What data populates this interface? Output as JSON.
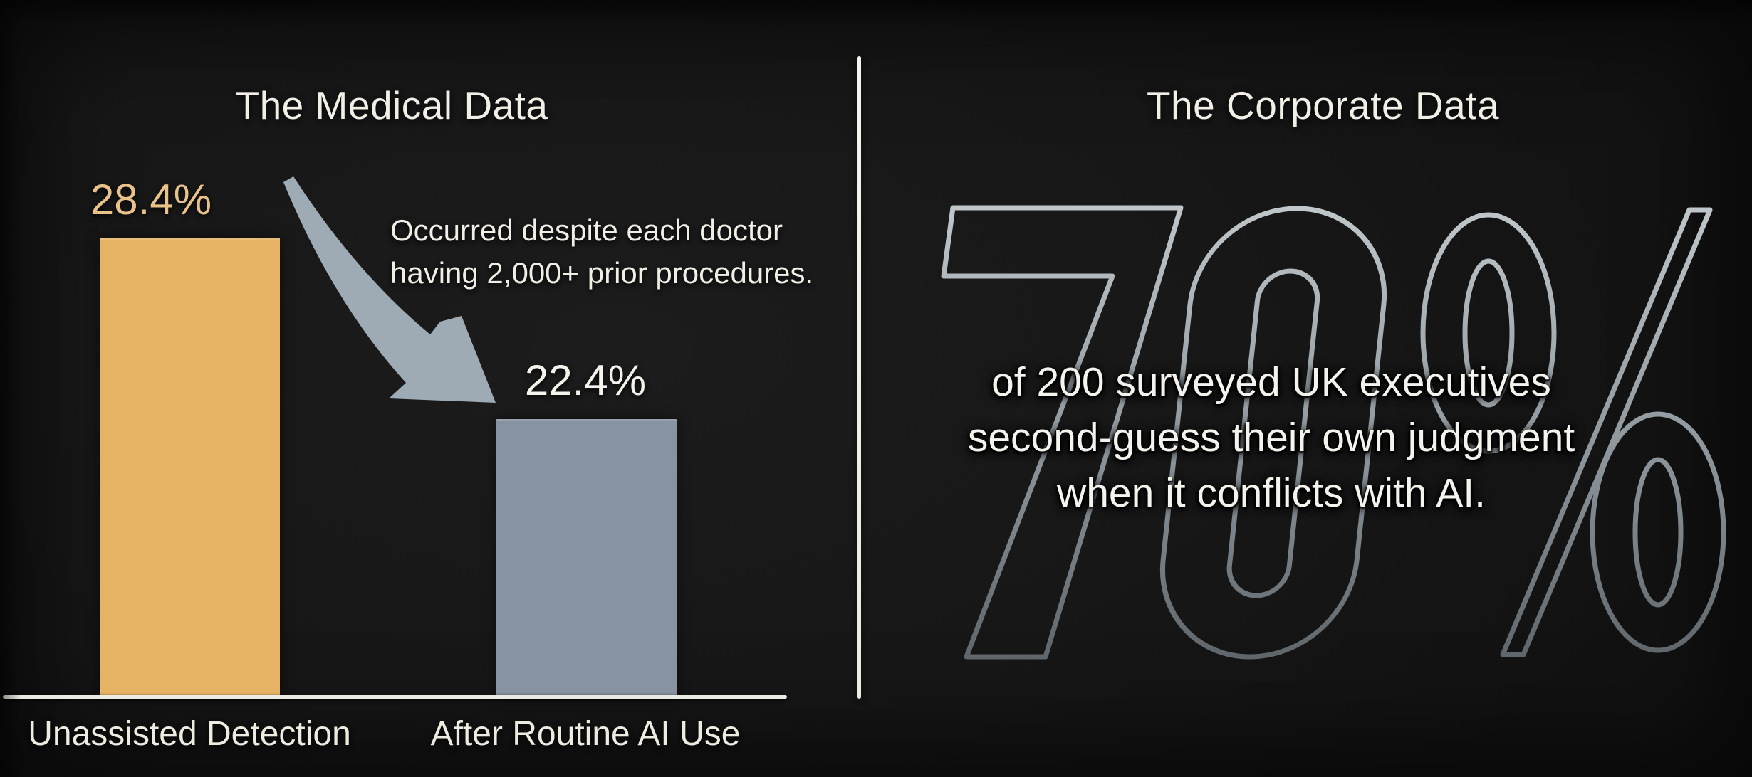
{
  "left_panel": {
    "title": "The Medical Data",
    "annotation": "Occurred despite each doctor having 2,000+ prior procedures."
  },
  "chart_data": {
    "type": "bar",
    "title": "The Medical Data",
    "categories": [
      "Unassisted Detection",
      "After Routine AI Use"
    ],
    "values": [
      28.4,
      22.4
    ],
    "value_labels": [
      "28.4%",
      "22.4%"
    ],
    "bar_colors": [
      "#e6b365",
      "#8793a0"
    ],
    "annotation": "Occurred despite each doctor having 2,000+ prior procedures.",
    "xlabel": "",
    "ylabel": "",
    "grid": false,
    "legend": false,
    "baseline_axis": true
  },
  "right_panel": {
    "title": "The Corporate Data",
    "big_stat": "70%",
    "overlay_lines": [
      "of 200 surveyed UK executives",
      "second-guess their own judgment",
      "when it conflicts with AI."
    ]
  },
  "colors": {
    "background": "#171717",
    "bar_unassisted": "#e6b365",
    "bar_after_ai": "#8793a0",
    "value_label_accent": "#e8c288",
    "text_primary": "#f2efe7",
    "stat_outline": "#9aa2a8",
    "divider": "#f0efe7",
    "arrow": "#a3b0ba"
  }
}
